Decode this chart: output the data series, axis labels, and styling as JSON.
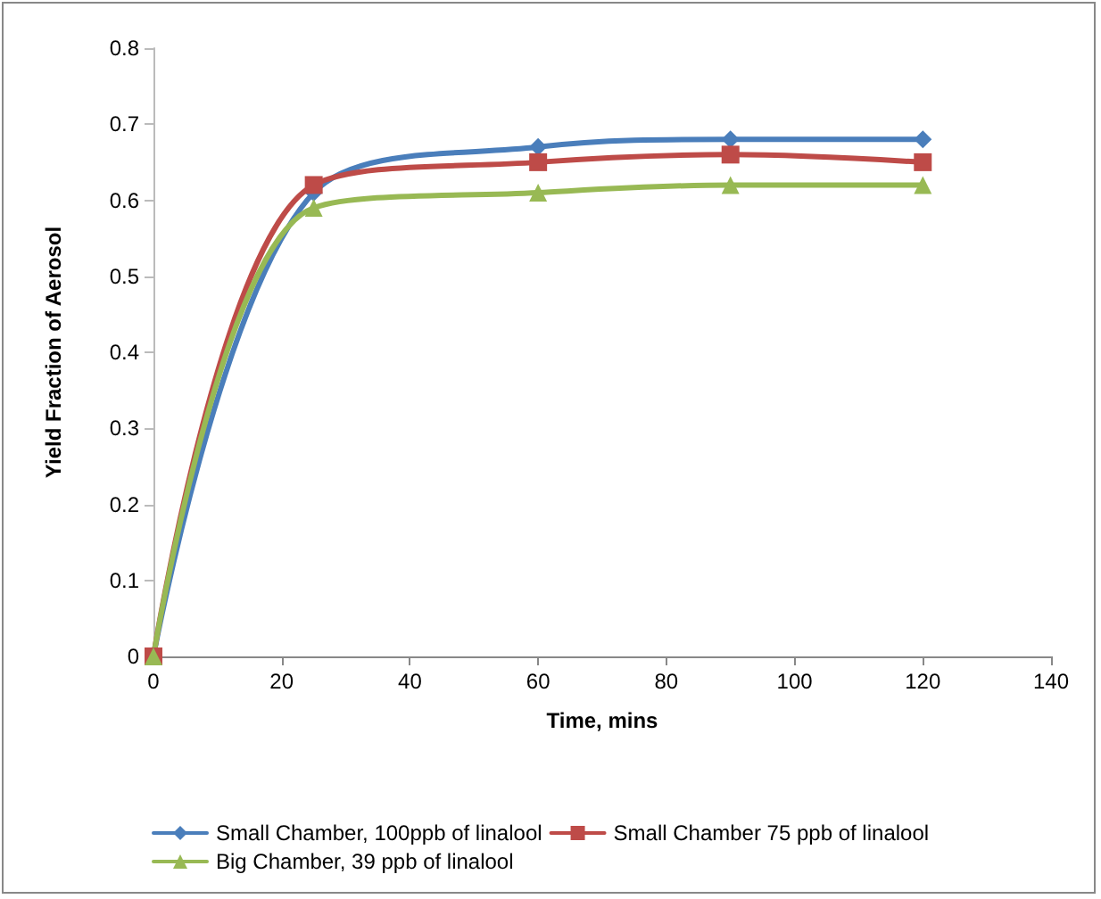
{
  "chart_data": {
    "type": "line",
    "xlabel": "Time, mins",
    "ylabel": "Yield Fraction of Aerosol",
    "x": [
      0,
      25,
      60,
      90,
      120
    ],
    "series": [
      {
        "name": "Small Chamber, 100ppb of linalool",
        "color": "#4a7ebb",
        "marker": "diamond",
        "values": [
          0,
          0.61,
          0.67,
          0.68,
          0.68
        ]
      },
      {
        "name": "Small Chamber 75 ppb of linalool",
        "color": "#be4b48",
        "marker": "square",
        "values": [
          0,
          0.62,
          0.65,
          0.66,
          0.65
        ]
      },
      {
        "name": "Big Chamber, 39 ppb of linalool",
        "color": "#98b954",
        "marker": "triangle",
        "values": [
          0,
          0.59,
          0.61,
          0.62,
          0.62
        ]
      }
    ],
    "xlim": [
      0,
      140
    ],
    "xticks": [
      0,
      20,
      40,
      60,
      80,
      100,
      120,
      140
    ],
    "ylim": [
      0,
      0.8
    ],
    "yticks": [
      0,
      0.1,
      0.2,
      0.3,
      0.4,
      0.5,
      0.6,
      0.7,
      0.8
    ],
    "grid": false,
    "legend": "bottom",
    "line_style": "solid"
  }
}
